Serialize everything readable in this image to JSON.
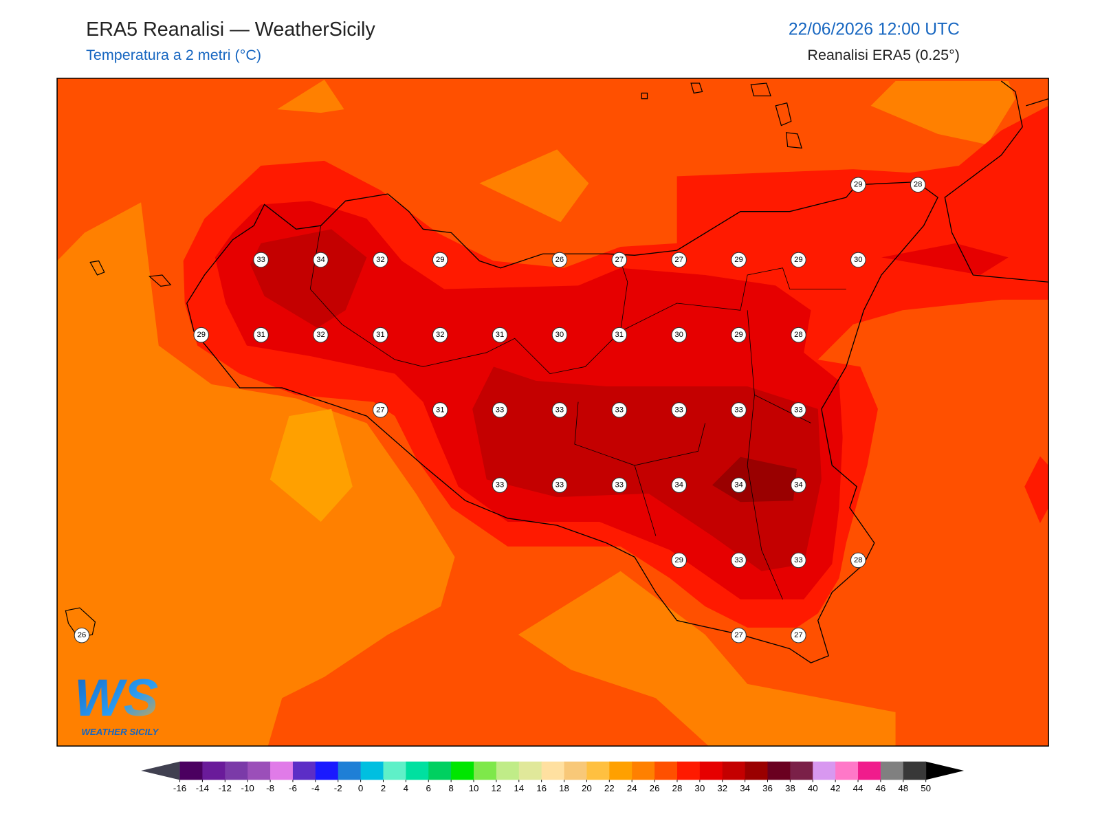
{
  "header": {
    "title": "ERA5 Reanalisi — WeatherSicily",
    "subtitle": "Temperatura a 2 metri (°C)",
    "datetime": "22/06/2026 12:00 UTC",
    "source": "Reanalisi ERA5 (0.25°)"
  },
  "grid": {
    "rows": [
      [
        null,
        null,
        null,
        null,
        null,
        null,
        null,
        null,
        null,
        null,
        null,
        null,
        null,
        29,
        28
      ],
      [
        null,
        null,
        null,
        33,
        34,
        32,
        29,
        null,
        26,
        27,
        27,
        29,
        29,
        30,
        null
      ],
      [
        null,
        null,
        29,
        31,
        32,
        31,
        32,
        31,
        30,
        31,
        30,
        29,
        28,
        null,
        null
      ],
      [
        null,
        null,
        null,
        null,
        null,
        27,
        31,
        33,
        33,
        33,
        33,
        33,
        33,
        null,
        null
      ],
      [
        null,
        null,
        null,
        null,
        null,
        null,
        null,
        33,
        33,
        33,
        34,
        34,
        34,
        null,
        null
      ],
      [
        null,
        null,
        null,
        null,
        null,
        null,
        null,
        null,
        null,
        null,
        29,
        33,
        33,
        28,
        null
      ],
      [
        26,
        null,
        null,
        null,
        null,
        null,
        null,
        null,
        null,
        null,
        null,
        27,
        27,
        null,
        null
      ]
    ]
  },
  "logo": {
    "mark": "WS",
    "text": "WEATHER SICILY"
  },
  "legend": {
    "ticks": [
      -16,
      -14,
      -12,
      -10,
      -8,
      -6,
      -4,
      -2,
      0,
      2,
      4,
      6,
      8,
      10,
      12,
      14,
      16,
      18,
      20,
      22,
      24,
      26,
      28,
      30,
      32,
      34,
      36,
      38,
      40,
      42,
      44,
      46,
      48,
      50
    ],
    "colors": [
      "#4b0060",
      "#6a1b9a",
      "#7b3aa8",
      "#9b4fb9",
      "#e07be8",
      "#5c2ec6",
      "#1a1aff",
      "#1e7fd6",
      "#00bfe0",
      "#5ff0c8",
      "#00e0a0",
      "#00d060",
      "#00e600",
      "#7ee84a",
      "#c0ec88",
      "#e0e89a",
      "#ffe0a0",
      "#f8c878",
      "#ffc040",
      "#ffa000",
      "#ff8000",
      "#ff5000",
      "#ff1a00",
      "#e60000",
      "#c40000",
      "#9a0000",
      "#6a0020",
      "#7a2048",
      "#d898f0",
      "#ff78c8",
      "#f01c8c",
      "#808080",
      "#383838"
    ],
    "under_color": "#404050",
    "over_color": "#000000"
  }
}
